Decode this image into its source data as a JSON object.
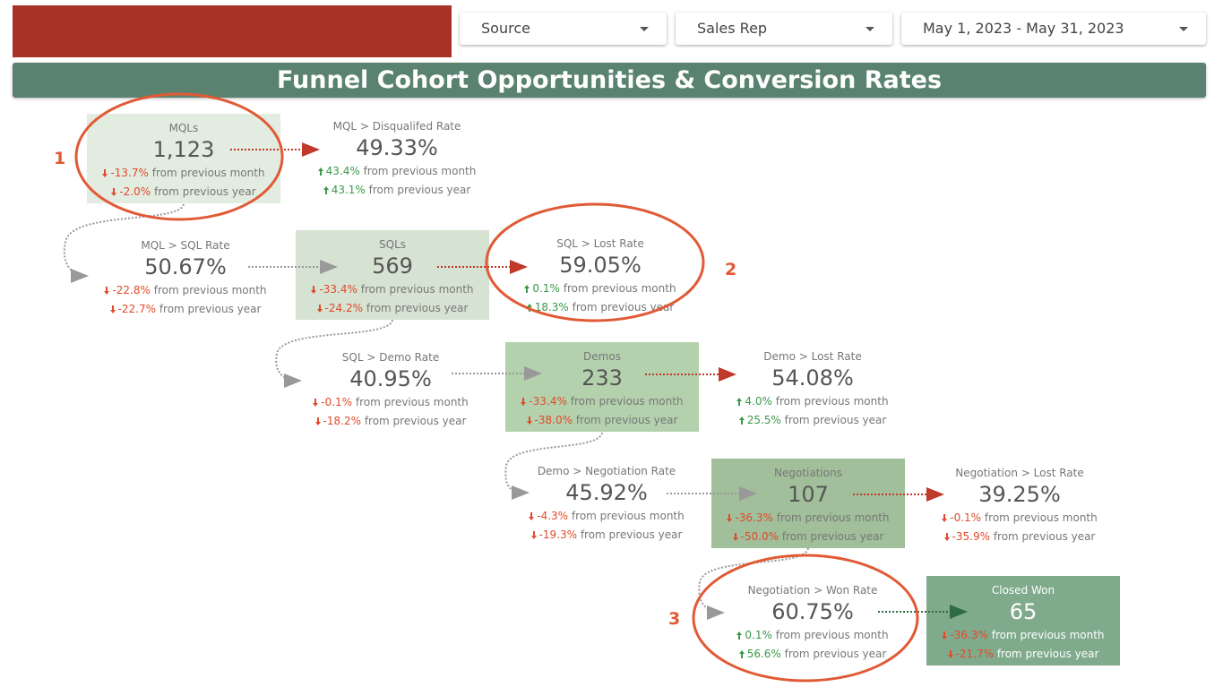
{
  "filters": [
    "Source",
    "Sales Rep",
    "May 1, 2023 - May 31, 2023"
  ],
  "title": "Funnel Cohort Opportunities & Conversion Rates",
  "annotations": [
    "1",
    "2",
    "3"
  ],
  "cards": [
    {
      "label": "MQLs",
      "value": "1,123",
      "fill": "#e3ece0",
      "month": {
        "change": "-13.7%",
        "label": "from previous month",
        "trend": "down"
      },
      "year": {
        "change": "-2.0%",
        "label": "from previous year",
        "trend": "down"
      }
    },
    {
      "label": "MQL > Disqualifed Rate",
      "value": "49.33%",
      "month": {
        "change": "43.4%",
        "label": "from previous month",
        "trend": "up"
      },
      "year": {
        "change": "43.1%",
        "label": "from previous year",
        "trend": "up"
      }
    },
    {
      "label": "MQL > SQL Rate",
      "value": "50.67%",
      "month": {
        "change": "-22.8%",
        "label": "from previous month",
        "trend": "down"
      },
      "year": {
        "change": "-22.7%",
        "label": "from previous year",
        "trend": "down"
      }
    },
    {
      "label": "SQLs",
      "value": "569",
      "fill": "#d6e3d2",
      "month": {
        "change": "-33.4%",
        "label": "from previous month",
        "trend": "down"
      },
      "year": {
        "change": "-24.2%",
        "label": "from previous year",
        "trend": "down"
      }
    },
    {
      "label": "SQL > Lost Rate",
      "value": "59.05%",
      "month": {
        "change": "0.1%",
        "label": "from previous month",
        "trend": "up"
      },
      "year": {
        "change": "18.3%",
        "label": "from previous year",
        "trend": "up"
      }
    },
    {
      "label": "SQL > Demo Rate",
      "value": "40.95%",
      "month": {
        "change": "-0.1%",
        "label": "from previous month",
        "trend": "down"
      },
      "year": {
        "change": "-18.2%",
        "label": "from previous year",
        "trend": "down"
      }
    },
    {
      "label": "Demos",
      "value": "233",
      "fill": "#b4d1ae",
      "month": {
        "change": "-33.4%",
        "label": "from previous month",
        "trend": "down"
      },
      "year": {
        "change": "-38.0%",
        "label": "from previous year",
        "trend": "down"
      }
    },
    {
      "label": "Demo > Lost Rate",
      "value": "54.08%",
      "month": {
        "change": "4.0%",
        "label": "from previous month",
        "trend": "up"
      },
      "year": {
        "change": "25.5%",
        "label": "from previous year",
        "trend": "up"
      }
    },
    {
      "label": "Demo > Negotiation Rate",
      "value": "45.92%",
      "month": {
        "change": "-4.3%",
        "label": "from previous month",
        "trend": "down"
      },
      "year": {
        "change": "-19.3%",
        "label": "from previous year",
        "trend": "down"
      }
    },
    {
      "label": "Negotiations",
      "value": "107",
      "fill": "#a0bf9a",
      "month": {
        "change": "-36.3%",
        "label": "from previous month",
        "trend": "down"
      },
      "year": {
        "change": "-50.0%",
        "label": "from previous year",
        "trend": "down"
      }
    },
    {
      "label": "Negotiation > Lost Rate",
      "value": "39.25%",
      "month": {
        "change": "-0.1%",
        "label": "from previous month",
        "trend": "down"
      },
      "year": {
        "change": "-35.9%",
        "label": "from previous year",
        "trend": "down"
      }
    },
    {
      "label": "Negotiation > Won Rate",
      "value": "60.75%",
      "month": {
        "change": "0.1%",
        "label": "from previous month",
        "trend": "up"
      },
      "year": {
        "change": "56.6%",
        "label": "from previous year",
        "trend": "up"
      }
    },
    {
      "label": "Closed Won",
      "value": "65",
      "fill": "#7faa8c",
      "text_color": "#ffffff",
      "month": {
        "change": "-36.3%",
        "label": "from previous month",
        "trend": "down"
      },
      "year": {
        "change": "-21.7%",
        "label": "from previous year",
        "trend": "down"
      }
    }
  ]
}
